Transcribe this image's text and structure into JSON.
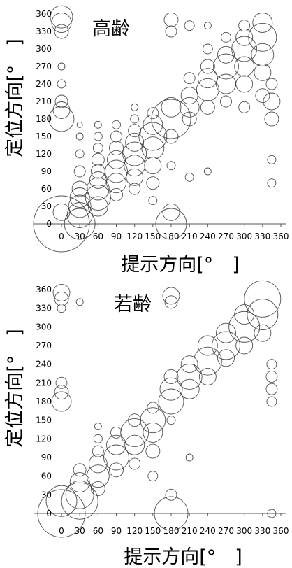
{
  "chart_data": [
    {
      "type": "scatter",
      "title": "高齢",
      "xlabel": "提示方向[°　]",
      "ylabel": "定位方向[°　]",
      "xlim": [
        0,
        360
      ],
      "ylim": [
        0,
        360
      ],
      "xticks": [
        0,
        30,
        60,
        90,
        120,
        150,
        180,
        210,
        240,
        270,
        300,
        330,
        360
      ],
      "yticks": [
        0,
        30,
        60,
        90,
        120,
        150,
        180,
        210,
        240,
        270,
        300,
        330,
        360
      ],
      "grid": false,
      "marker": "open-circle, size proportional to response count",
      "points": [
        {
          "x": 0,
          "y": 0,
          "r": 40
        },
        {
          "x": 0,
          "y": 20,
          "r": 12
        },
        {
          "x": 0,
          "y": 180,
          "r": 18
        },
        {
          "x": 0,
          "y": 195,
          "r": 12
        },
        {
          "x": 0,
          "y": 210,
          "r": 9
        },
        {
          "x": 0,
          "y": 240,
          "r": 6
        },
        {
          "x": 0,
          "y": 270,
          "r": 5
        },
        {
          "x": 0,
          "y": 330,
          "r": 10
        },
        {
          "x": 0,
          "y": 345,
          "r": 14
        },
        {
          "x": 0,
          "y": 355,
          "r": 16
        },
        {
          "x": 30,
          "y": 0,
          "r": 22
        },
        {
          "x": 30,
          "y": 15,
          "r": 18
        },
        {
          "x": 30,
          "y": 30,
          "r": 16
        },
        {
          "x": 30,
          "y": 45,
          "r": 14
        },
        {
          "x": 30,
          "y": 60,
          "r": 11
        },
        {
          "x": 30,
          "y": 90,
          "r": 8
        },
        {
          "x": 30,
          "y": 120,
          "r": 6
        },
        {
          "x": 30,
          "y": 150,
          "r": 5
        },
        {
          "x": 30,
          "y": 170,
          "r": 4
        },
        {
          "x": 60,
          "y": 30,
          "r": 14
        },
        {
          "x": 60,
          "y": 45,
          "r": 18
        },
        {
          "x": 60,
          "y": 60,
          "r": 16
        },
        {
          "x": 60,
          "y": 75,
          "r": 12
        },
        {
          "x": 60,
          "y": 90,
          "r": 10
        },
        {
          "x": 60,
          "y": 110,
          "r": 9
        },
        {
          "x": 60,
          "y": 130,
          "r": 7
        },
        {
          "x": 60,
          "y": 150,
          "r": 6
        },
        {
          "x": 60,
          "y": 170,
          "r": 5
        },
        {
          "x": 90,
          "y": 50,
          "r": 9
        },
        {
          "x": 90,
          "y": 70,
          "r": 14
        },
        {
          "x": 90,
          "y": 90,
          "r": 16
        },
        {
          "x": 90,
          "y": 110,
          "r": 13
        },
        {
          "x": 90,
          "y": 130,
          "r": 10
        },
        {
          "x": 90,
          "y": 150,
          "r": 8
        },
        {
          "x": 90,
          "y": 170,
          "r": 6
        },
        {
          "x": 120,
          "y": 60,
          "r": 8
        },
        {
          "x": 120,
          "y": 80,
          "r": 12
        },
        {
          "x": 120,
          "y": 100,
          "r": 15
        },
        {
          "x": 120,
          "y": 120,
          "r": 17
        },
        {
          "x": 120,
          "y": 140,
          "r": 13
        },
        {
          "x": 120,
          "y": 160,
          "r": 9
        },
        {
          "x": 120,
          "y": 180,
          "r": 6
        },
        {
          "x": 120,
          "y": 200,
          "r": 5
        },
        {
          "x": 150,
          "y": 40,
          "r": 6
        },
        {
          "x": 150,
          "y": 70,
          "r": 9
        },
        {
          "x": 150,
          "y": 100,
          "r": 12
        },
        {
          "x": 150,
          "y": 130,
          "r": 16
        },
        {
          "x": 150,
          "y": 150,
          "r": 20
        },
        {
          "x": 150,
          "y": 170,
          "r": 14
        },
        {
          "x": 150,
          "y": 190,
          "r": 8
        },
        {
          "x": 180,
          "y": 0,
          "r": 22
        },
        {
          "x": 180,
          "y": 20,
          "r": 12
        },
        {
          "x": 180,
          "y": 100,
          "r": 6
        },
        {
          "x": 180,
          "y": 150,
          "r": 10
        },
        {
          "x": 180,
          "y": 180,
          "r": 28
        },
        {
          "x": 180,
          "y": 200,
          "r": 14
        },
        {
          "x": 180,
          "y": 330,
          "r": 8
        },
        {
          "x": 180,
          "y": 350,
          "r": 10
        },
        {
          "x": 210,
          "y": 80,
          "r": 6
        },
        {
          "x": 210,
          "y": 180,
          "r": 10
        },
        {
          "x": 210,
          "y": 200,
          "r": 14
        },
        {
          "x": 210,
          "y": 220,
          "r": 12
        },
        {
          "x": 210,
          "y": 250,
          "r": 8
        },
        {
          "x": 210,
          "y": 340,
          "r": 7
        },
        {
          "x": 240,
          "y": 90,
          "r": 5
        },
        {
          "x": 240,
          "y": 200,
          "r": 10
        },
        {
          "x": 240,
          "y": 230,
          "r": 16
        },
        {
          "x": 240,
          "y": 250,
          "r": 14
        },
        {
          "x": 240,
          "y": 270,
          "r": 10
        },
        {
          "x": 240,
          "y": 300,
          "r": 7
        },
        {
          "x": 240,
          "y": 340,
          "r": 5
        },
        {
          "x": 270,
          "y": 210,
          "r": 8
        },
        {
          "x": 270,
          "y": 240,
          "r": 14
        },
        {
          "x": 270,
          "y": 270,
          "r": 18
        },
        {
          "x": 270,
          "y": 290,
          "r": 12
        },
        {
          "x": 270,
          "y": 320,
          "r": 7
        },
        {
          "x": 300,
          "y": 200,
          "r": 8
        },
        {
          "x": 300,
          "y": 240,
          "r": 12
        },
        {
          "x": 300,
          "y": 270,
          "r": 14
        },
        {
          "x": 300,
          "y": 300,
          "r": 18
        },
        {
          "x": 300,
          "y": 320,
          "r": 12
        },
        {
          "x": 300,
          "y": 340,
          "r": 8
        },
        {
          "x": 330,
          "y": 220,
          "r": 10
        },
        {
          "x": 330,
          "y": 260,
          "r": 12
        },
        {
          "x": 330,
          "y": 290,
          "r": 16
        },
        {
          "x": 330,
          "y": 320,
          "r": 20
        },
        {
          "x": 330,
          "y": 345,
          "r": 14
        },
        {
          "x": 345,
          "y": 70,
          "r": 6
        },
        {
          "x": 345,
          "y": 110,
          "r": 6
        },
        {
          "x": 345,
          "y": 180,
          "r": 10
        },
        {
          "x": 345,
          "y": 210,
          "r": 12
        },
        {
          "x": 345,
          "y": 240,
          "r": 8
        }
      ]
    },
    {
      "type": "scatter",
      "title": "若齢",
      "xlabel": "提示方向[°　]",
      "ylabel": "定位方向[°　]",
      "xlim": [
        0,
        360
      ],
      "ylim": [
        0,
        360
      ],
      "xticks": [
        0,
        30,
        60,
        90,
        120,
        150,
        180,
        210,
        240,
        270,
        300,
        330,
        360
      ],
      "yticks": [
        0,
        30,
        60,
        90,
        120,
        150,
        180,
        210,
        240,
        270,
        300,
        330,
        360
      ],
      "grid": false,
      "marker": "open-circle, size proportional to response count",
      "points": [
        {
          "x": 0,
          "y": 0,
          "r": 34
        },
        {
          "x": 0,
          "y": 20,
          "r": 22
        },
        {
          "x": 0,
          "y": 180,
          "r": 14
        },
        {
          "x": 0,
          "y": 195,
          "r": 10
        },
        {
          "x": 0,
          "y": 210,
          "r": 8
        },
        {
          "x": 0,
          "y": 330,
          "r": 6
        },
        {
          "x": 0,
          "y": 345,
          "r": 10
        },
        {
          "x": 0,
          "y": 355,
          "r": 12
        },
        {
          "x": 30,
          "y": 20,
          "r": 26
        },
        {
          "x": 30,
          "y": 30,
          "r": 20
        },
        {
          "x": 30,
          "y": 50,
          "r": 14
        },
        {
          "x": 30,
          "y": 70,
          "r": 9
        },
        {
          "x": 30,
          "y": 340,
          "r": 5
        },
        {
          "x": 60,
          "y": 40,
          "r": 10
        },
        {
          "x": 60,
          "y": 60,
          "r": 16
        },
        {
          "x": 60,
          "y": 80,
          "r": 13
        },
        {
          "x": 60,
          "y": 100,
          "r": 8
        },
        {
          "x": 60,
          "y": 120,
          "r": 6
        },
        {
          "x": 60,
          "y": 140,
          "r": 5
        },
        {
          "x": 90,
          "y": 70,
          "r": 10
        },
        {
          "x": 90,
          "y": 90,
          "r": 18
        },
        {
          "x": 90,
          "y": 110,
          "r": 14
        },
        {
          "x": 90,
          "y": 130,
          "r": 8
        },
        {
          "x": 120,
          "y": 80,
          "r": 8
        },
        {
          "x": 120,
          "y": 110,
          "r": 14
        },
        {
          "x": 120,
          "y": 130,
          "r": 20
        },
        {
          "x": 120,
          "y": 150,
          "r": 9
        },
        {
          "x": 150,
          "y": 60,
          "r": 7
        },
        {
          "x": 150,
          "y": 100,
          "r": 10
        },
        {
          "x": 150,
          "y": 130,
          "r": 14
        },
        {
          "x": 150,
          "y": 150,
          "r": 18
        },
        {
          "x": 150,
          "y": 170,
          "r": 8
        },
        {
          "x": 180,
          "y": 0,
          "r": 24
        },
        {
          "x": 180,
          "y": 30,
          "r": 8
        },
        {
          "x": 180,
          "y": 150,
          "r": 6
        },
        {
          "x": 180,
          "y": 180,
          "r": 18
        },
        {
          "x": 180,
          "y": 200,
          "r": 16
        },
        {
          "x": 180,
          "y": 220,
          "r": 10
        },
        {
          "x": 180,
          "y": 340,
          "r": 9
        },
        {
          "x": 180,
          "y": 350,
          "r": 12
        },
        {
          "x": 210,
          "y": 90,
          "r": 5
        },
        {
          "x": 210,
          "y": 200,
          "r": 14
        },
        {
          "x": 210,
          "y": 220,
          "r": 18
        },
        {
          "x": 210,
          "y": 240,
          "r": 12
        },
        {
          "x": 240,
          "y": 220,
          "r": 12
        },
        {
          "x": 240,
          "y": 245,
          "r": 20
        },
        {
          "x": 240,
          "y": 270,
          "r": 14
        },
        {
          "x": 270,
          "y": 250,
          "r": 12
        },
        {
          "x": 270,
          "y": 270,
          "r": 20
        },
        {
          "x": 270,
          "y": 290,
          "r": 14
        },
        {
          "x": 300,
          "y": 270,
          "r": 12
        },
        {
          "x": 300,
          "y": 300,
          "r": 22
        },
        {
          "x": 300,
          "y": 320,
          "r": 14
        },
        {
          "x": 330,
          "y": 290,
          "r": 12
        },
        {
          "x": 330,
          "y": 320,
          "r": 22
        },
        {
          "x": 330,
          "y": 345,
          "r": 26
        },
        {
          "x": 345,
          "y": 0,
          "r": 6
        },
        {
          "x": 345,
          "y": 180,
          "r": 7
        },
        {
          "x": 345,
          "y": 200,
          "r": 8
        },
        {
          "x": 345,
          "y": 220,
          "r": 8
        },
        {
          "x": 345,
          "y": 240,
          "r": 7
        }
      ]
    }
  ]
}
